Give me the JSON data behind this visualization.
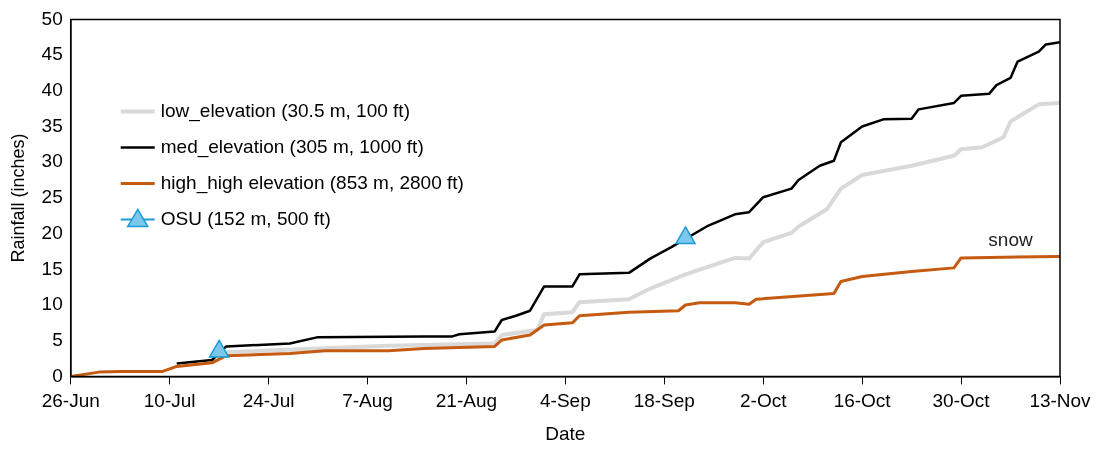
{
  "chart_data": {
    "type": "line",
    "xlabel": "Date",
    "ylabel": "Rainfall (inches)",
    "xlim": [
      "--06-26",
      "--11-13"
    ],
    "ylim": [
      0,
      50
    ],
    "yticks": [
      0,
      5,
      10,
      15,
      20,
      25,
      30,
      35,
      40,
      45,
      50
    ],
    "xticks": [
      {
        "value": "--06-26",
        "label": "26-Jun"
      },
      {
        "value": "--07-10",
        "label": "10-Jul"
      },
      {
        "value": "--07-24",
        "label": "24-Jul"
      },
      {
        "value": "--08-07",
        "label": "7-Aug"
      },
      {
        "value": "--08-21",
        "label": "21-Aug"
      },
      {
        "value": "--09-04",
        "label": "4-Sep"
      },
      {
        "value": "--09-18",
        "label": "18-Sep"
      },
      {
        "value": "--10-02",
        "label": "2-Oct"
      },
      {
        "value": "--10-16",
        "label": "16-Oct"
      },
      {
        "value": "--10-30",
        "label": "30-Oct"
      },
      {
        "value": "--11-13",
        "label": "13-Nov"
      }
    ],
    "grid": false,
    "legend": "top left",
    "annotations": [
      {
        "text": "snow",
        "x": "--11-06",
        "y": 16.8
      }
    ],
    "series": [
      {
        "name": "low_elevation (30.5 m, 100 ft)",
        "color": "#d9d9d9",
        "x": [
          "--07-18",
          "--08-10",
          "--08-25",
          "--08-26",
          "--08-31",
          "--09-01",
          "--09-05",
          "--09-06",
          "--09-13",
          "--09-16",
          "--09-21",
          "--09-28",
          "--09-30",
          "--10-02",
          "--10-06",
          "--10-07",
          "--10-11",
          "--10-13",
          "--10-16",
          "--10-23",
          "--10-29",
          "--10-30",
          "--11-02",
          "--11-05",
          "--11-06",
          "--11-10",
          "--11-13"
        ],
        "values": [
          3.4,
          4.3,
          4.6,
          5.8,
          6.5,
          8.7,
          9.0,
          10.4,
          10.8,
          12.3,
          14.3,
          16.6,
          16.5,
          18.8,
          20.1,
          21.0,
          23.4,
          26.3,
          28.2,
          29.5,
          30.9,
          31.8,
          32.1,
          33.5,
          35.7,
          38.1,
          38.3
        ]
      },
      {
        "name": "med_elevation (305 m, 1000 ft)",
        "color": "#000000",
        "x": [
          "--07-11",
          "--07-16",
          "--07-18",
          "--07-27",
          "--07-31",
          "--08-15",
          "--08-19",
          "--08-20",
          "--08-25",
          "--08-26",
          "--08-28",
          "--08-30",
          "--09-01",
          "--09-05",
          "--09-06",
          "--09-13",
          "--09-16",
          "--09-19",
          "--09-24",
          "--09-28",
          "--09-30",
          "--10-02",
          "--10-06",
          "--10-07",
          "--10-10",
          "--10-12",
          "--10-13",
          "--10-16",
          "--10-19",
          "--10-23",
          "--10-24",
          "--10-29",
          "--10-30",
          "--11-03",
          "--11-04",
          "--11-06",
          "--11-07",
          "--11-10",
          "--11-11",
          "--11-13"
        ],
        "values": [
          1.8,
          2.3,
          4.2,
          4.6,
          5.5,
          5.6,
          5.6,
          5.9,
          6.3,
          7.9,
          8.5,
          9.2,
          12.6,
          12.6,
          14.3,
          14.5,
          16.5,
          18.1,
          21.0,
          22.7,
          23.0,
          25.1,
          26.3,
          27.5,
          29.5,
          30.2,
          32.8,
          35.0,
          36.0,
          36.1,
          37.4,
          38.3,
          39.3,
          39.6,
          40.8,
          41.8,
          44.1,
          45.5,
          46.5,
          46.8
        ]
      },
      {
        "name": "high_high elevation (853 m, 2800 ft)",
        "color": "#c55a11",
        "x": [
          "--06-26",
          "--06-30",
          "--07-03",
          "--07-09",
          "--07-11",
          "--07-16",
          "--07-18",
          "--07-27",
          "--08-01",
          "--08-10",
          "--08-15",
          "--08-25",
          "--08-26",
          "--08-30",
          "--09-01",
          "--09-05",
          "--09-06",
          "--09-13",
          "--09-20",
          "--09-21",
          "--09-23",
          "--09-28",
          "--09-30",
          "--10-01",
          "--10-12",
          "--10-13",
          "--10-16",
          "--10-23",
          "--10-29",
          "--10-30",
          "--11-13"
        ],
        "values": [
          0,
          0.6,
          0.7,
          0.7,
          1.4,
          1.9,
          2.9,
          3.2,
          3.6,
          3.6,
          3.9,
          4.2,
          5.1,
          5.8,
          7.2,
          7.5,
          8.5,
          9.0,
          9.2,
          10.0,
          10.3,
          10.3,
          10.1,
          10.8,
          11.6,
          13.3,
          14.0,
          14.7,
          15.2,
          16.6,
          16.8
        ]
      },
      {
        "name": "OSU (152 m, 500 ft)",
        "type": "scatter",
        "marker": "triangle",
        "color": "#7cc8ea",
        "x": [
          "--07-17",
          "--09-21"
        ],
        "values": [
          3.5,
          19.4
        ]
      }
    ]
  }
}
